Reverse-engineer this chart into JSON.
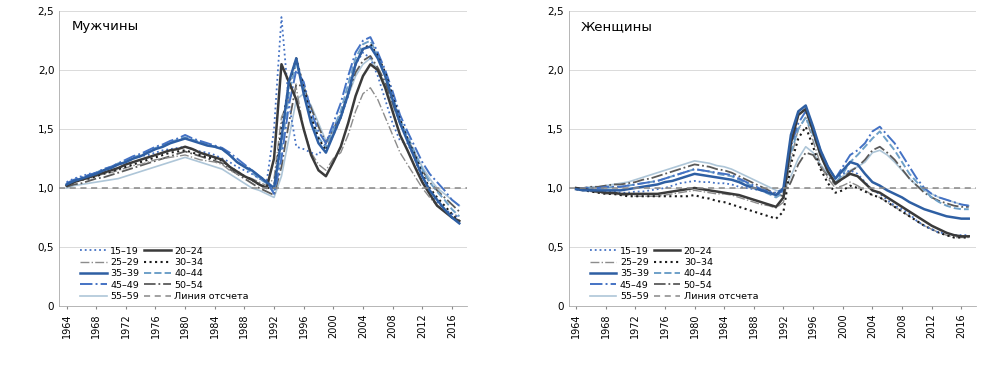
{
  "years": [
    1964,
    1965,
    1966,
    1967,
    1968,
    1969,
    1970,
    1971,
    1972,
    1973,
    1974,
    1975,
    1976,
    1977,
    1978,
    1979,
    1980,
    1981,
    1982,
    1983,
    1984,
    1985,
    1986,
    1987,
    1988,
    1989,
    1990,
    1991,
    1992,
    1993,
    1994,
    1995,
    1996,
    1997,
    1998,
    1999,
    2000,
    2001,
    2002,
    2003,
    2004,
    2005,
    2006,
    2007,
    2008,
    2009,
    2010,
    2011,
    2012,
    2013,
    2014,
    2015,
    2016,
    2017
  ],
  "men": {
    "15-19": [
      1.05,
      1.08,
      1.1,
      1.12,
      1.13,
      1.15,
      1.17,
      1.2,
      1.22,
      1.25,
      1.27,
      1.28,
      1.3,
      1.32,
      1.33,
      1.34,
      1.35,
      1.33,
      1.31,
      1.3,
      1.28,
      1.25,
      1.22,
      1.18,
      1.15,
      1.12,
      1.08,
      1.05,
      1.5,
      2.45,
      1.72,
      1.35,
      1.33,
      1.3,
      1.28,
      1.38,
      1.52,
      1.6,
      1.78,
      2.05,
      2.15,
      2.1,
      1.95,
      1.75,
      1.55,
      1.4,
      1.38,
      1.25,
      1.05,
      0.95,
      0.88,
      0.82,
      0.78,
      0.75
    ],
    "25-29": [
      1.02,
      1.05,
      1.07,
      1.08,
      1.1,
      1.12,
      1.13,
      1.15,
      1.17,
      1.19,
      1.2,
      1.22,
      1.24,
      1.25,
      1.26,
      1.27,
      1.28,
      1.26,
      1.24,
      1.23,
      1.22,
      1.2,
      1.15,
      1.12,
      1.1,
      1.08,
      1.05,
      1.02,
      1.08,
      1.6,
      1.75,
      1.85,
      1.5,
      1.3,
      1.2,
      1.15,
      1.25,
      1.3,
      1.45,
      1.65,
      1.8,
      1.85,
      1.75,
      1.6,
      1.45,
      1.3,
      1.2,
      1.1,
      1.0,
      0.92,
      0.85,
      0.8,
      0.78,
      0.76
    ],
    "35-39": [
      1.03,
      1.06,
      1.08,
      1.1,
      1.12,
      1.15,
      1.17,
      1.2,
      1.22,
      1.25,
      1.27,
      1.3,
      1.33,
      1.35,
      1.38,
      1.4,
      1.42,
      1.4,
      1.38,
      1.36,
      1.35,
      1.33,
      1.28,
      1.22,
      1.18,
      1.15,
      1.1,
      1.05,
      1.0,
      1.42,
      1.9,
      2.1,
      1.8,
      1.55,
      1.38,
      1.3,
      1.45,
      1.6,
      1.8,
      2.05,
      2.18,
      2.2,
      2.1,
      1.95,
      1.75,
      1.55,
      1.4,
      1.25,
      1.1,
      0.98,
      0.9,
      0.82,
      0.75,
      0.7
    ],
    "45-49": [
      1.04,
      1.07,
      1.09,
      1.11,
      1.13,
      1.16,
      1.18,
      1.21,
      1.24,
      1.27,
      1.29,
      1.32,
      1.35,
      1.37,
      1.4,
      1.42,
      1.45,
      1.42,
      1.4,
      1.38,
      1.36,
      1.34,
      1.3,
      1.25,
      1.2,
      1.15,
      1.1,
      1.06,
      0.95,
      1.25,
      1.7,
      2.0,
      1.9,
      1.65,
      1.48,
      1.38,
      1.55,
      1.72,
      1.95,
      2.15,
      2.25,
      2.28,
      2.15,
      2.0,
      1.82,
      1.62,
      1.48,
      1.35,
      1.22,
      1.12,
      1.05,
      0.98,
      0.9,
      0.85
    ],
    "55-59": [
      1.0,
      1.02,
      1.03,
      1.04,
      1.05,
      1.06,
      1.07,
      1.08,
      1.1,
      1.12,
      1.14,
      1.16,
      1.18,
      1.2,
      1.22,
      1.24,
      1.26,
      1.24,
      1.22,
      1.2,
      1.18,
      1.16,
      1.12,
      1.08,
      1.04,
      1.0,
      0.98,
      0.95,
      0.92,
      1.1,
      1.42,
      1.75,
      1.8,
      1.7,
      1.55,
      1.4,
      1.48,
      1.6,
      1.78,
      1.95,
      2.05,
      2.1,
      2.0,
      1.88,
      1.7,
      1.55,
      1.42,
      1.3,
      1.18,
      1.08,
      1.0,
      0.95,
      0.9,
      0.85
    ],
    "20-24": [
      1.02,
      1.05,
      1.07,
      1.09,
      1.11,
      1.13,
      1.15,
      1.17,
      1.2,
      1.22,
      1.24,
      1.26,
      1.28,
      1.3,
      1.32,
      1.33,
      1.35,
      1.33,
      1.3,
      1.28,
      1.26,
      1.24,
      1.18,
      1.14,
      1.1,
      1.07,
      1.03,
      1.0,
      1.25,
      2.05,
      1.9,
      1.75,
      1.5,
      1.28,
      1.15,
      1.1,
      1.22,
      1.35,
      1.55,
      1.78,
      1.95,
      2.05,
      2.0,
      1.85,
      1.65,
      1.45,
      1.32,
      1.18,
      1.05,
      0.95,
      0.85,
      0.8,
      0.75,
      0.72
    ],
    "30-34": [
      1.02,
      1.05,
      1.07,
      1.08,
      1.1,
      1.12,
      1.14,
      1.16,
      1.18,
      1.2,
      1.22,
      1.24,
      1.26,
      1.28,
      1.3,
      1.31,
      1.32,
      1.3,
      1.28,
      1.26,
      1.25,
      1.23,
      1.18,
      1.14,
      1.1,
      1.07,
      1.03,
      1.0,
      1.0,
      1.5,
      1.88,
      2.1,
      1.85,
      1.6,
      1.42,
      1.32,
      1.45,
      1.6,
      1.8,
      2.05,
      2.18,
      2.22,
      2.12,
      1.98,
      1.78,
      1.58,
      1.42,
      1.28,
      1.12,
      1.0,
      0.92,
      0.85,
      0.78,
      0.72
    ],
    "40-44": [
      1.03,
      1.06,
      1.08,
      1.11,
      1.13,
      1.16,
      1.18,
      1.21,
      1.23,
      1.26,
      1.28,
      1.31,
      1.34,
      1.36,
      1.39,
      1.41,
      1.43,
      1.41,
      1.39,
      1.37,
      1.35,
      1.33,
      1.28,
      1.22,
      1.18,
      1.13,
      1.08,
      1.04,
      0.96,
      1.33,
      1.8,
      2.06,
      1.85,
      1.6,
      1.43,
      1.34,
      1.5,
      1.65,
      1.88,
      2.1,
      2.22,
      2.25,
      2.12,
      1.97,
      1.78,
      1.58,
      1.44,
      1.3,
      1.16,
      1.05,
      0.97,
      0.9,
      0.82,
      0.76
    ],
    "50-54": [
      1.01,
      1.03,
      1.04,
      1.06,
      1.08,
      1.09,
      1.11,
      1.13,
      1.15,
      1.17,
      1.19,
      1.21,
      1.23,
      1.25,
      1.27,
      1.29,
      1.31,
      1.29,
      1.27,
      1.25,
      1.23,
      1.21,
      1.16,
      1.12,
      1.08,
      1.04,
      1.0,
      0.97,
      0.94,
      1.18,
      1.55,
      1.88,
      1.86,
      1.68,
      1.52,
      1.38,
      1.5,
      1.62,
      1.8,
      1.98,
      2.08,
      2.12,
      2.02,
      1.9,
      1.72,
      1.55,
      1.42,
      1.28,
      1.15,
      1.05,
      0.98,
      0.92,
      0.86,
      0.8
    ]
  },
  "women": {
    "15-19": [
      1.0,
      0.99,
      0.98,
      0.98,
      0.97,
      0.97,
      0.96,
      0.96,
      0.97,
      0.97,
      0.98,
      0.99,
      1.0,
      1.02,
      1.04,
      1.05,
      1.06,
      1.05,
      1.05,
      1.04,
      1.04,
      1.03,
      1.01,
      1.0,
      0.99,
      0.98,
      0.97,
      0.96,
      1.0,
      1.4,
      1.62,
      1.68,
      1.5,
      1.3,
      1.18,
      1.08,
      1.12,
      1.15,
      1.12,
      1.05,
      0.98,
      0.95,
      0.9,
      0.85,
      0.82,
      0.78,
      0.72,
      0.68,
      0.65,
      0.62,
      0.62,
      0.6,
      0.6,
      0.6
    ],
    "25-29": [
      0.99,
      0.98,
      0.97,
      0.96,
      0.95,
      0.95,
      0.94,
      0.94,
      0.93,
      0.93,
      0.93,
      0.93,
      0.94,
      0.95,
      0.96,
      0.97,
      0.98,
      0.97,
      0.96,
      0.95,
      0.95,
      0.94,
      0.92,
      0.9,
      0.88,
      0.86,
      0.85,
      0.83,
      0.88,
      1.25,
      1.5,
      1.6,
      1.4,
      1.2,
      1.08,
      1.0,
      1.02,
      1.05,
      1.02,
      0.98,
      0.94,
      0.92,
      0.88,
      0.84,
      0.8,
      0.76,
      0.72,
      0.68,
      0.65,
      0.62,
      0.6,
      0.58,
      0.58,
      0.58
    ],
    "35-39": [
      0.99,
      0.98,
      0.98,
      0.98,
      0.98,
      0.98,
      0.98,
      0.99,
      1.0,
      1.01,
      1.02,
      1.03,
      1.05,
      1.06,
      1.08,
      1.1,
      1.12,
      1.11,
      1.1,
      1.09,
      1.08,
      1.07,
      1.05,
      1.02,
      1.0,
      0.98,
      0.96,
      0.94,
      1.0,
      1.45,
      1.65,
      1.7,
      1.52,
      1.32,
      1.18,
      1.08,
      1.15,
      1.22,
      1.2,
      1.12,
      1.05,
      1.02,
      0.98,
      0.95,
      0.92,
      0.88,
      0.85,
      0.82,
      0.8,
      0.78,
      0.76,
      0.75,
      0.74,
      0.74
    ],
    "45-49": [
      1.0,
      1.0,
      1.0,
      1.0,
      1.01,
      1.01,
      1.01,
      1.02,
      1.03,
      1.04,
      1.05,
      1.06,
      1.08,
      1.1,
      1.12,
      1.14,
      1.16,
      1.15,
      1.14,
      1.13,
      1.12,
      1.11,
      1.08,
      1.05,
      1.02,
      0.99,
      0.97,
      0.94,
      0.98,
      1.35,
      1.55,
      1.65,
      1.5,
      1.32,
      1.18,
      1.08,
      1.18,
      1.28,
      1.32,
      1.38,
      1.48,
      1.52,
      1.45,
      1.38,
      1.28,
      1.18,
      1.08,
      1.0,
      0.95,
      0.92,
      0.9,
      0.88,
      0.86,
      0.85
    ],
    "55-59": [
      1.0,
      1.0,
      1.01,
      1.01,
      1.02,
      1.03,
      1.04,
      1.05,
      1.07,
      1.09,
      1.11,
      1.13,
      1.15,
      1.17,
      1.19,
      1.21,
      1.23,
      1.22,
      1.21,
      1.19,
      1.18,
      1.16,
      1.13,
      1.1,
      1.07,
      1.04,
      1.01,
      0.98,
      0.96,
      1.1,
      1.25,
      1.35,
      1.3,
      1.2,
      1.12,
      1.05,
      1.1,
      1.15,
      1.18,
      1.22,
      1.3,
      1.32,
      1.28,
      1.22,
      1.15,
      1.08,
      1.02,
      0.98,
      0.95,
      0.92,
      0.9,
      0.88,
      0.86,
      0.85
    ],
    "20-24": [
      1.0,
      0.99,
      0.98,
      0.97,
      0.96,
      0.96,
      0.95,
      0.95,
      0.95,
      0.95,
      0.95,
      0.95,
      0.96,
      0.97,
      0.98,
      0.99,
      1.0,
      0.99,
      0.98,
      0.97,
      0.96,
      0.95,
      0.94,
      0.92,
      0.9,
      0.88,
      0.86,
      0.84,
      0.92,
      1.38,
      1.62,
      1.67,
      1.48,
      1.28,
      1.14,
      1.04,
      1.08,
      1.12,
      1.1,
      1.04,
      0.98,
      0.96,
      0.92,
      0.88,
      0.84,
      0.8,
      0.76,
      0.72,
      0.68,
      0.65,
      0.62,
      0.6,
      0.59,
      0.59
    ],
    "30-34": [
      0.99,
      0.98,
      0.97,
      0.96,
      0.95,
      0.95,
      0.94,
      0.93,
      0.93,
      0.93,
      0.93,
      0.93,
      0.93,
      0.93,
      0.93,
      0.93,
      0.94,
      0.92,
      0.91,
      0.89,
      0.88,
      0.86,
      0.84,
      0.82,
      0.8,
      0.78,
      0.76,
      0.74,
      0.8,
      1.2,
      1.42,
      1.52,
      1.35,
      1.16,
      1.04,
      0.96,
      0.98,
      1.02,
      1.0,
      0.97,
      0.94,
      0.92,
      0.88,
      0.84,
      0.8,
      0.76,
      0.72,
      0.68,
      0.65,
      0.62,
      0.6,
      0.58,
      0.58,
      0.58
    ],
    "40-44": [
      1.0,
      1.0,
      1.0,
      1.0,
      1.0,
      1.01,
      1.01,
      1.02,
      1.03,
      1.04,
      1.05,
      1.06,
      1.08,
      1.1,
      1.12,
      1.14,
      1.16,
      1.15,
      1.14,
      1.12,
      1.11,
      1.1,
      1.07,
      1.04,
      1.01,
      0.98,
      0.95,
      0.92,
      0.96,
      1.3,
      1.5,
      1.6,
      1.45,
      1.28,
      1.14,
      1.04,
      1.12,
      1.22,
      1.28,
      1.35,
      1.42,
      1.48,
      1.4,
      1.32,
      1.22,
      1.12,
      1.05,
      0.98,
      0.92,
      0.88,
      0.85,
      0.83,
      0.82,
      0.82
    ],
    "50-54": [
      1.0,
      1.0,
      1.01,
      1.01,
      1.02,
      1.03,
      1.03,
      1.04,
      1.05,
      1.07,
      1.08,
      1.1,
      1.12,
      1.14,
      1.16,
      1.18,
      1.2,
      1.19,
      1.18,
      1.16,
      1.15,
      1.13,
      1.1,
      1.07,
      1.04,
      1.01,
      0.98,
      0.95,
      0.93,
      1.05,
      1.2,
      1.3,
      1.28,
      1.18,
      1.1,
      1.03,
      1.08,
      1.14,
      1.18,
      1.24,
      1.32,
      1.35,
      1.3,
      1.24,
      1.16,
      1.08,
      1.02,
      0.96,
      0.92,
      0.89,
      0.87,
      0.85,
      0.84,
      0.84
    ]
  },
  "series_styles": {
    "15-19": {
      "color": "#4472c4",
      "linestyle": "dotted",
      "linewidth": 1.3,
      "dashes": []
    },
    "25-29": {
      "color": "#8c8c8c",
      "linestyle": "dashdot",
      "linewidth": 1.0
    },
    "35-39": {
      "color": "#2e5fa3",
      "linestyle": "solid",
      "linewidth": 1.8
    },
    "45-49": {
      "color": "#4472c4",
      "linestyle": "dashdot",
      "linewidth": 1.4
    },
    "55-59": {
      "color": "#aec6d8",
      "linestyle": "solid",
      "linewidth": 1.2
    },
    "20-24": {
      "color": "#3a3a3a",
      "linestyle": "solid",
      "linewidth": 1.8
    },
    "30-34": {
      "color": "#1a1a1a",
      "linestyle": "dotted",
      "linewidth": 1.5
    },
    "40-44": {
      "color": "#6ea0c8",
      "linestyle": "dashed",
      "linewidth": 1.4
    },
    "50-54": {
      "color": "#5a5a5a",
      "linestyle": "dashdot",
      "linewidth": 1.3
    }
  },
  "title_men": "Мужчины",
  "title_women": "Женщины",
  "ylim": [
    0.0,
    2.5
  ],
  "yticks": [
    0.0,
    0.5,
    1.0,
    1.5,
    2.0,
    2.5
  ],
  "baseline_color": "#888888",
  "background_color": "#ffffff",
  "legend_left": [
    "15-19",
    "25-29",
    "35-39",
    "45-49",
    "55-59"
  ],
  "legend_right": [
    "20-24",
    "30-34",
    "40-44",
    "50-54"
  ]
}
